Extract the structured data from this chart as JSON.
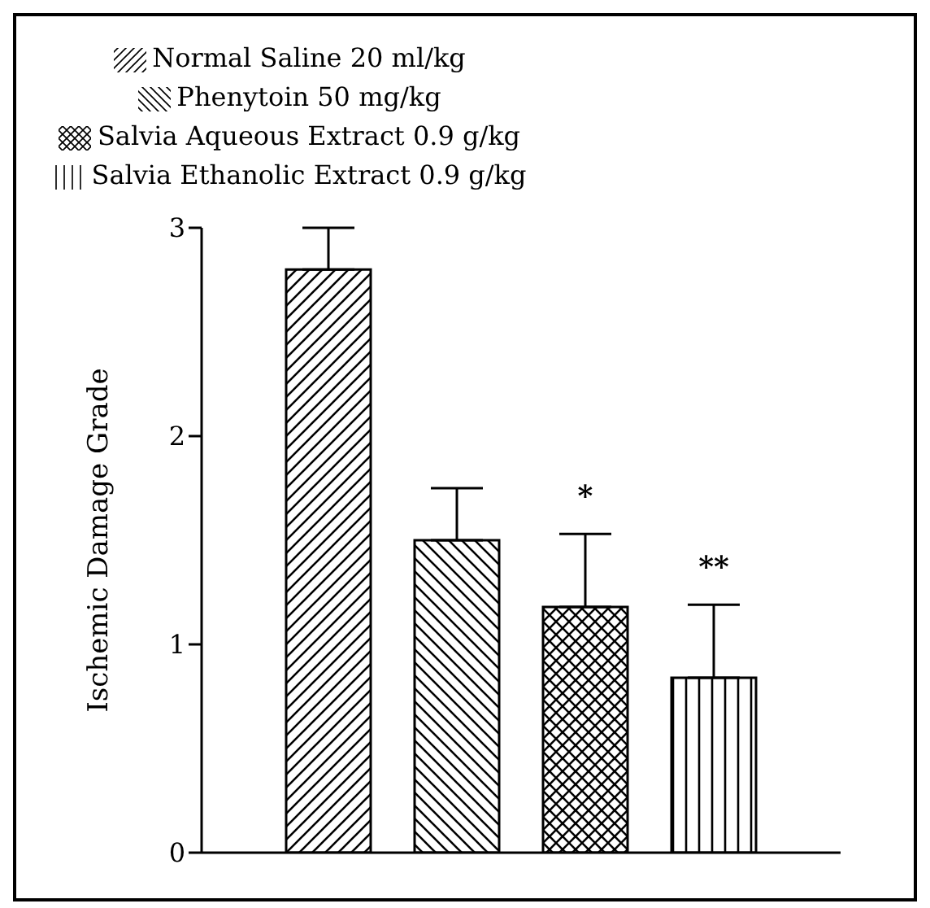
{
  "chart_data": {
    "type": "bar",
    "ylabel": "Ischemic Damage Grade",
    "categories": [
      null
    ],
    "series": [
      {
        "name": "Normal Saline 20 ml/kg",
        "color": "#000000",
        "values": [
          2.8
        ],
        "errors": [
          0.2
        ]
      },
      {
        "name": "Phenytoin 50 mg/kg",
        "color": "#000000",
        "values": [
          1.5
        ],
        "errors": [
          0.25
        ]
      },
      {
        "name": "Salvia Aqueous Extract 0.9 g/kg",
        "color": "#000000",
        "values": [
          1.18
        ],
        "errors": [
          0.35
        ]
      },
      {
        "name": "Salvia Ethanolic Extract 0.9 g/kg",
        "color": "#000000",
        "values": [
          0.84
        ],
        "errors": [
          0.35
        ]
      }
    ],
    "ylim": [
      0,
      3
    ],
    "yticks": [
      0,
      1,
      2,
      3
    ],
    "grid": false,
    "legend": "top left",
    "annotations": [
      "*",
      "**"
    ]
  }
}
